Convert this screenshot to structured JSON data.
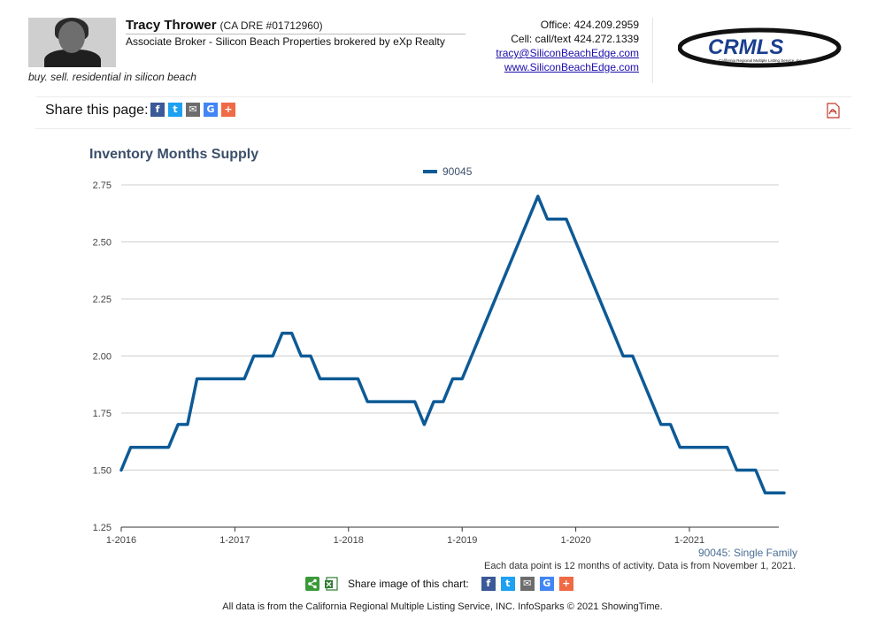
{
  "agent": {
    "name": "Tracy Thrower",
    "dre": "(CA DRE #01712960)",
    "title": "Associate Broker - Silicon Beach Properties brokered by eXp Realty",
    "tagline": "buy. sell. residential in silicon beach"
  },
  "contact": {
    "office": "Office: 424.209.2959",
    "cell": "Cell: call/text 424.272.1339",
    "email": "tracy@SiliconBeachEdge.com",
    "website": "www.SiliconBeachEdge.com"
  },
  "logo": {
    "text": "CRMLS",
    "subtext": "California Regional Multiple Listing Service, Inc.",
    "color": "#1b3f8f"
  },
  "share_page": {
    "label": "Share this page:",
    "icons": [
      "facebook-icon",
      "twitter-icon",
      "email-icon",
      "google-icon",
      "plus-icon"
    ]
  },
  "chart_data": {
    "type": "line",
    "title": "Inventory Months Supply",
    "xlabel": "",
    "ylabel": "",
    "ylim": [
      1.25,
      2.75
    ],
    "yticks": [
      "2.75",
      "2.50",
      "2.25",
      "2.00",
      "1.75",
      "1.50",
      "1.25"
    ],
    "xticks": [
      "1-2016",
      "1-2017",
      "1-2018",
      "1-2019",
      "1-2020",
      "1-2021"
    ],
    "legend_position": "top-center",
    "grid": true,
    "series": [
      {
        "name": "90045",
        "color": "#0d5a96",
        "start": "2016-01",
        "values": [
          1.5,
          1.6,
          1.6,
          1.6,
          1.6,
          1.6,
          1.7,
          1.7,
          1.9,
          1.9,
          1.9,
          1.9,
          1.9,
          1.9,
          2.0,
          2.0,
          2.0,
          2.1,
          2.1,
          2.0,
          2.0,
          1.9,
          1.9,
          1.9,
          1.9,
          1.9,
          1.8,
          1.8,
          1.8,
          1.8,
          1.8,
          1.8,
          1.7,
          1.8,
          1.8,
          1.9,
          1.9,
          2.0,
          2.1,
          2.2,
          2.3,
          2.4,
          2.5,
          2.6,
          2.7,
          2.6,
          2.6,
          2.6,
          2.5,
          2.4,
          2.3,
          2.2,
          2.1,
          2.0,
          2.0,
          1.9,
          1.8,
          1.7,
          1.7,
          1.6,
          1.6,
          1.6,
          1.6,
          1.6,
          1.6,
          1.5,
          1.5,
          1.5,
          1.4,
          1.4,
          1.4
        ]
      }
    ],
    "series_note": "90045: Single Family",
    "data_note": "Each data point is 12 months of activity. Data is from November 1, 2021."
  },
  "share_image": {
    "label": "Share image of this chart:"
  },
  "footer": {
    "text": "All data is from the California Regional Multiple Listing Service, INC. InfoSparks © 2021 ShowingTime."
  }
}
